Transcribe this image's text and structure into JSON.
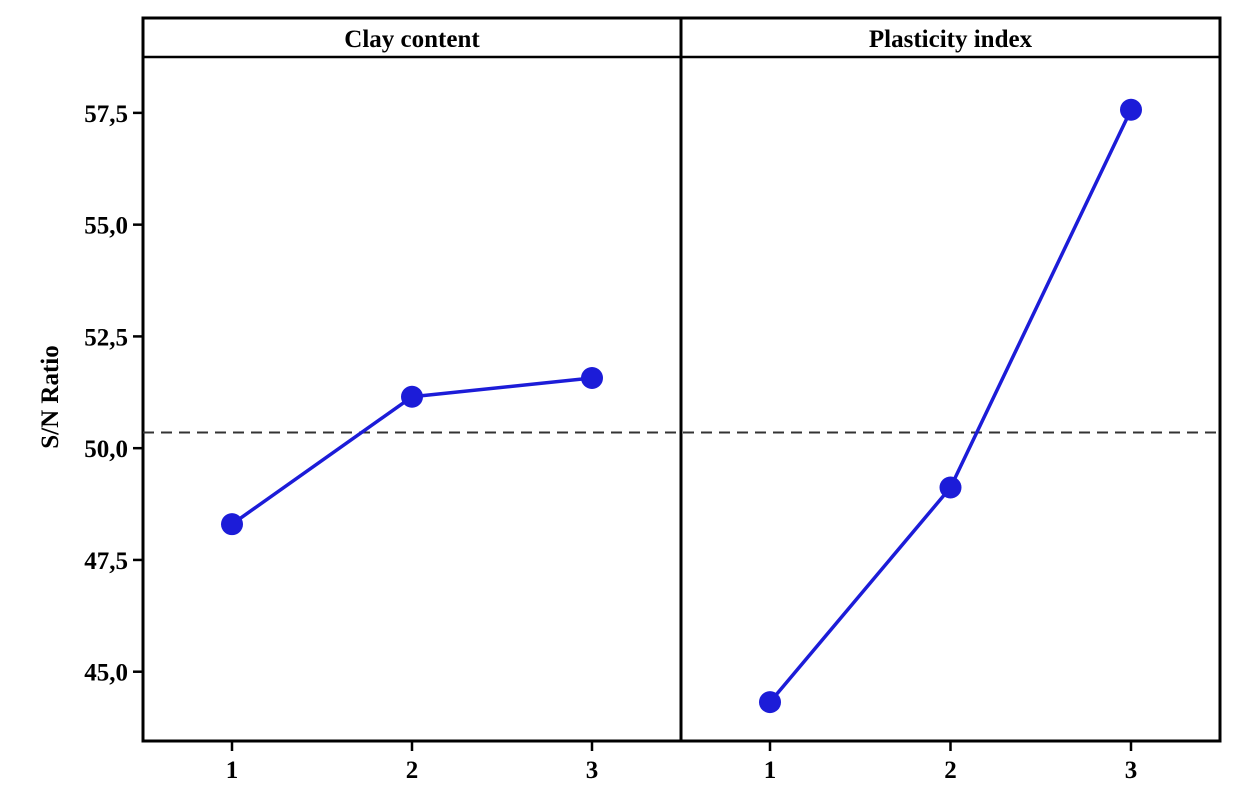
{
  "chart_data": {
    "type": "line",
    "ylabel": "S/N Ratio",
    "y_ticks": [
      "45,0",
      "47,5",
      "50,0",
      "52,5",
      "55,0",
      "57,5"
    ],
    "y_tick_values": [
      45.0,
      47.5,
      50.0,
      52.5,
      55.0,
      57.5
    ],
    "ylim": [
      43.45,
      58.75
    ],
    "mean_line": 50.35,
    "grid": false,
    "colors": {
      "series": "#1c1cd8",
      "mean_line": "#333333"
    },
    "panels": [
      {
        "title": "Clay content",
        "x_ticks": [
          "1",
          "2",
          "3"
        ],
        "x": [
          1,
          2,
          3
        ],
        "values": [
          48.3,
          51.15,
          51.57
        ]
      },
      {
        "title": "Plasticity index",
        "x_ticks": [
          "1",
          "2",
          "3"
        ],
        "x": [
          1,
          2,
          3
        ],
        "values": [
          44.32,
          49.12,
          57.57
        ]
      }
    ]
  }
}
